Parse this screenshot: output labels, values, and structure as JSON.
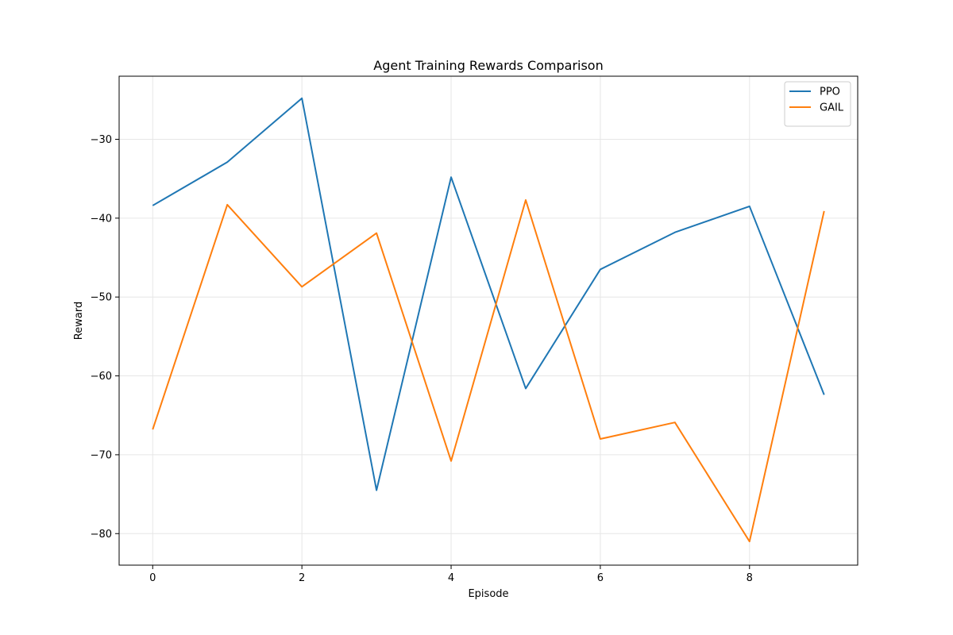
{
  "chart_data": {
    "type": "line",
    "title": "Agent Training Rewards Comparison",
    "xlabel": "Episode",
    "ylabel": "Reward",
    "x": [
      0,
      1,
      2,
      3,
      4,
      5,
      6,
      7,
      8,
      9
    ],
    "xlim": [
      -0.45,
      9.45
    ],
    "ylim": [
      -84,
      -22
    ],
    "xticks": [
      0,
      2,
      4,
      6,
      8
    ],
    "yticks": [
      -80,
      -70,
      -60,
      -50,
      -40,
      -30
    ],
    "grid": true,
    "legend_position": "top-right",
    "series": [
      {
        "name": "PPO",
        "color": "#1f77b4",
        "values": [
          -38.4,
          -32.9,
          -24.8,
          -74.5,
          -34.8,
          -61.6,
          -46.5,
          -41.8,
          -38.5,
          -62.4
        ]
      },
      {
        "name": "GAIL",
        "color": "#ff7f0e",
        "values": [
          -66.8,
          -38.3,
          -48.7,
          -41.9,
          -70.8,
          -37.7,
          -68.0,
          -65.9,
          -81.0,
          -39.1
        ]
      }
    ]
  }
}
